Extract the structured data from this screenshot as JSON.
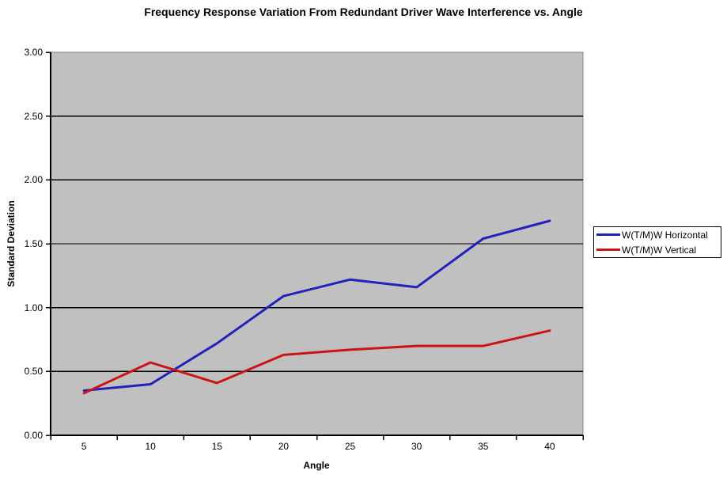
{
  "title": "Frequency Response Variation From Redundant Driver Wave Interference vs. Angle",
  "chart_data": {
    "type": "line",
    "title": "Frequency Response Variation From Redundant Driver Wave Interference vs. Angle",
    "xlabel": "Angle",
    "ylabel": "Standard Deviation",
    "categories": [
      5,
      10,
      15,
      20,
      25,
      30,
      35,
      40
    ],
    "x_tick_labels": [
      "5",
      "10",
      "15",
      "20",
      "25",
      "30",
      "35",
      "40"
    ],
    "y_ticks": [
      0,
      0.5,
      1,
      1.5,
      2,
      2.5,
      3
    ],
    "y_tick_labels": [
      "0.00",
      "0.50",
      "1.00",
      "1.50",
      "2.00",
      "2.50",
      "3.00"
    ],
    "ylim": [
      0,
      3
    ],
    "grid": "horizontal-only",
    "legend_position": "right",
    "colors": {
      "plot_background": "#c0c0c0",
      "plot_border": "#848484",
      "axis": "#000000",
      "gridline": "#000000"
    },
    "series": [
      {
        "name": "W(T/M)W Horizontal",
        "color": "#2222bb",
        "values": [
          0.35,
          0.4,
          0.72,
          1.09,
          1.22,
          1.16,
          1.54,
          1.68
        ]
      },
      {
        "name": "W(T/M)W Vertical",
        "color": "#cc1414",
        "values": [
          0.33,
          0.57,
          0.41,
          0.63,
          0.67,
          0.7,
          0.7,
          0.82
        ]
      }
    ]
  }
}
